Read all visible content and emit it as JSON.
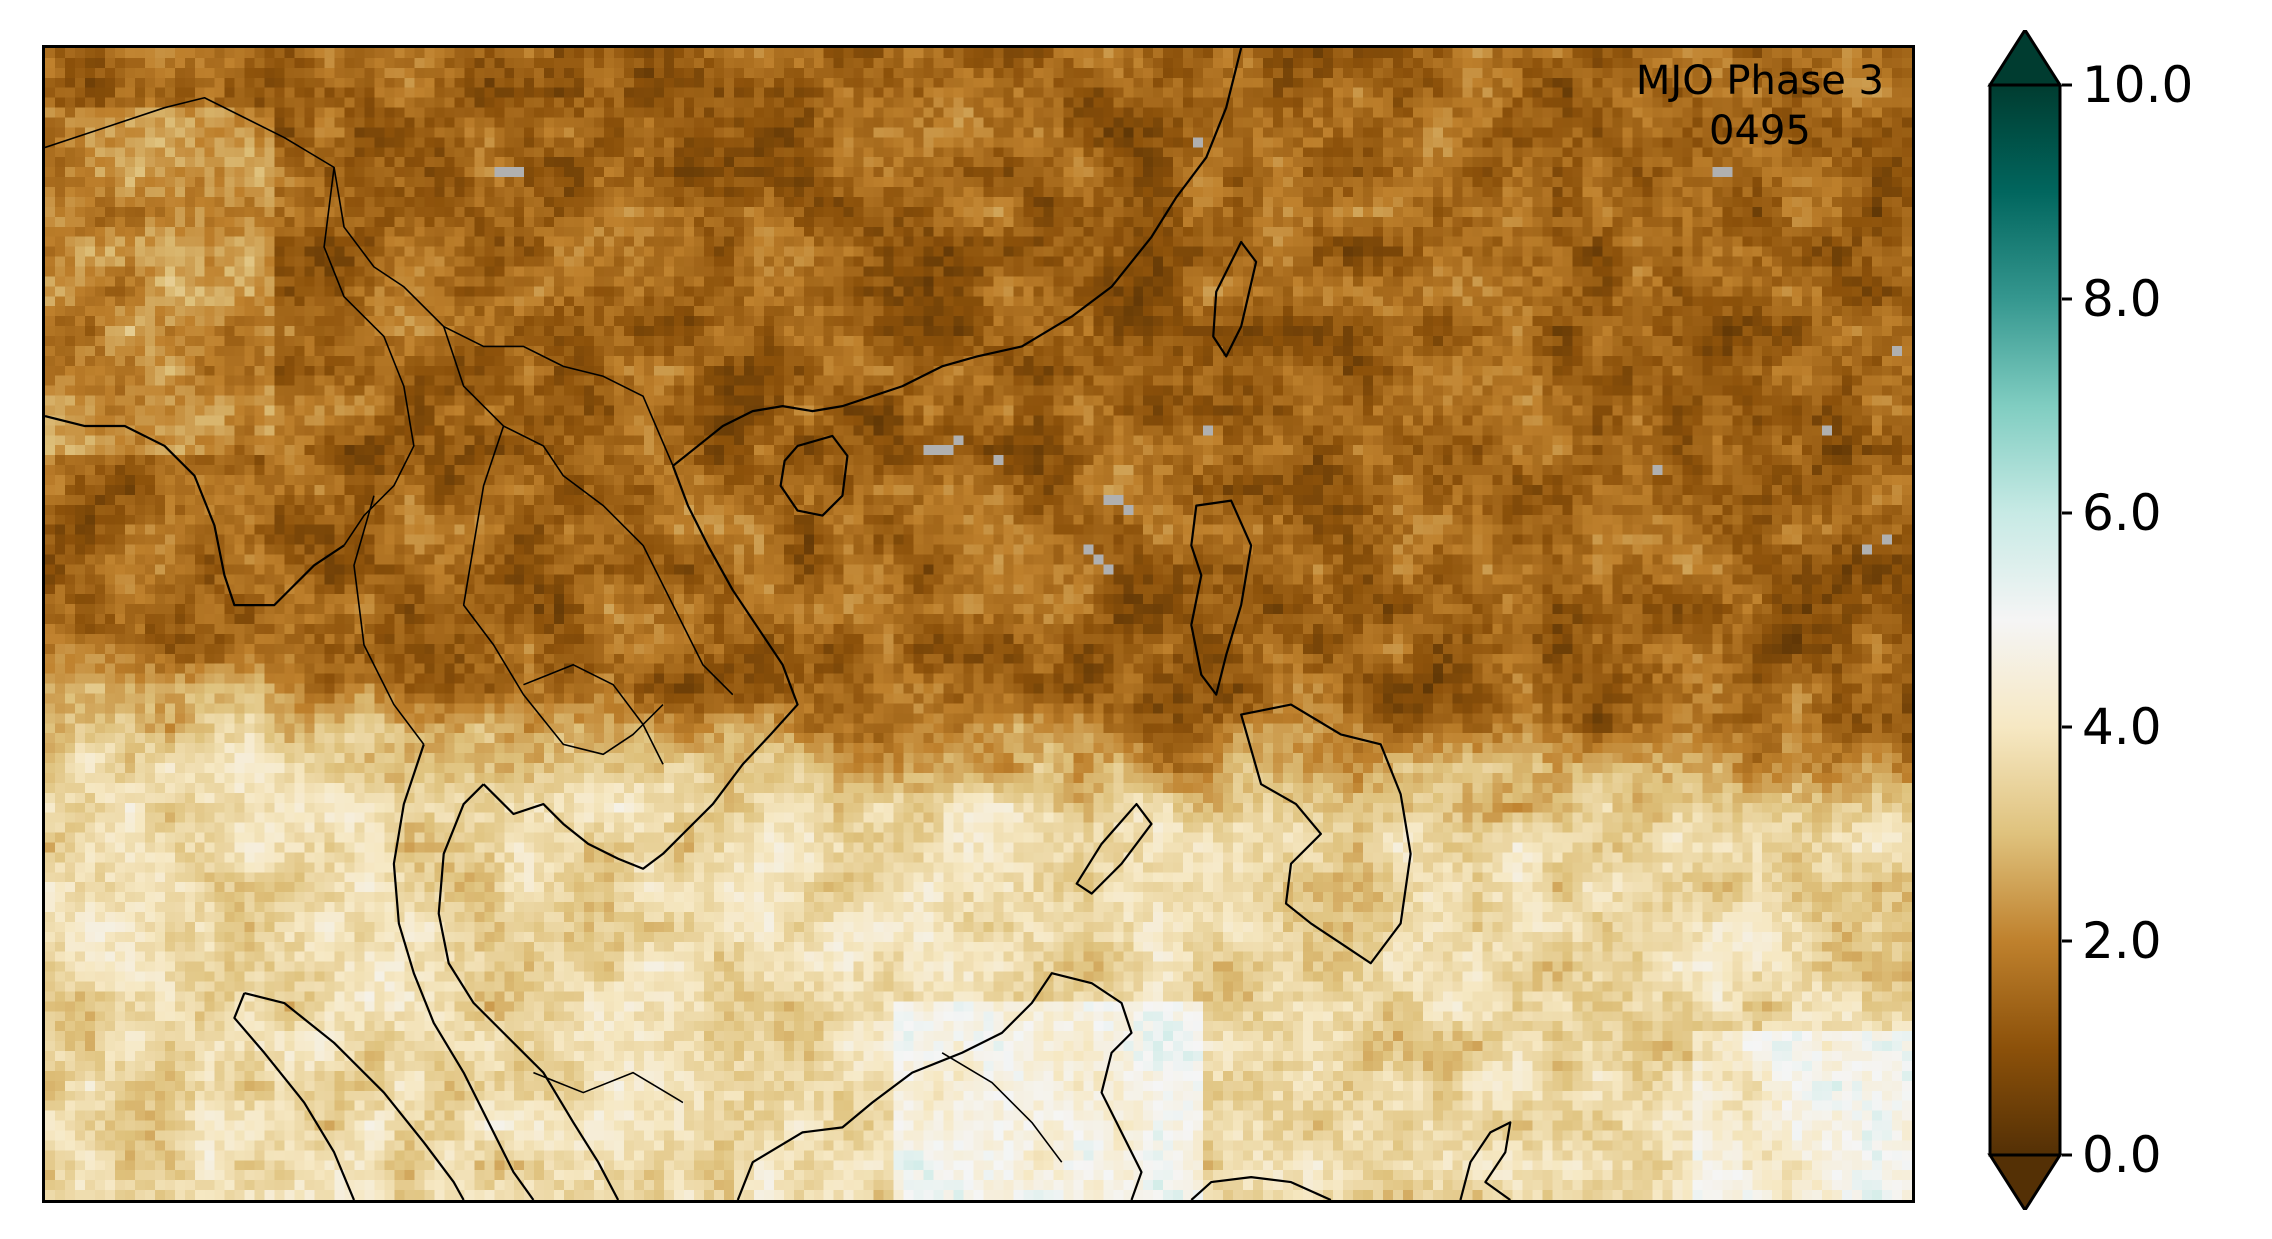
{
  "title": {
    "line1": "MJO Phase 3",
    "line2": "0495"
  },
  "colorbar": {
    "ticks": [
      "0.0",
      "2.0",
      "4.0",
      "6.0",
      "8.0",
      "10.0"
    ],
    "tick_values": [
      0,
      2,
      4,
      6,
      8,
      10
    ],
    "range": [
      0,
      10
    ],
    "extend": "both",
    "colormap": "BrBG",
    "colors": [
      "#543005",
      "#8c510a",
      "#bf812d",
      "#dfc27d",
      "#f6e8c3",
      "#f5f5f5",
      "#c7eae5",
      "#80cdc1",
      "#35978f",
      "#01665e",
      "#003c30"
    ]
  },
  "map": {
    "region": "Southeast Asia / South China Sea",
    "missing_color": "#b0b0b0",
    "coastline_color": "#000000"
  }
}
